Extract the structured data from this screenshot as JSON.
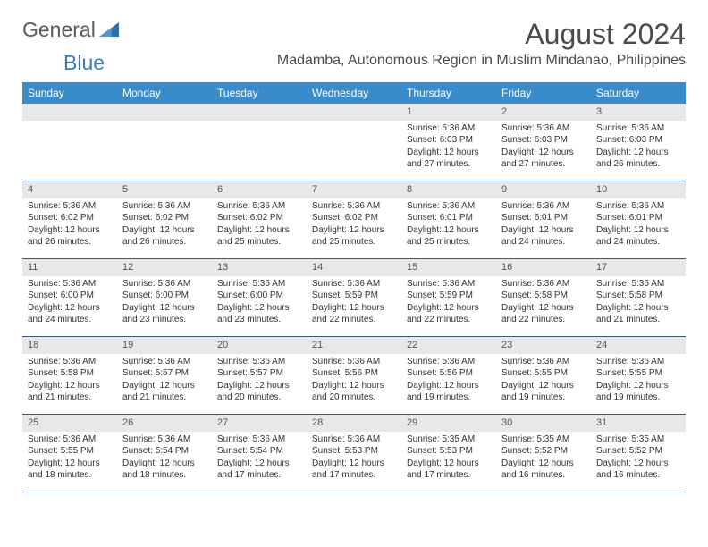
{
  "brand": {
    "part1": "General",
    "part2": "Blue"
  },
  "title": "August 2024",
  "location": "Madamba, Autonomous Region in Muslim Mindanao, Philippines",
  "colors": {
    "header_bg": "#3a8bc9",
    "header_text": "#ffffff",
    "daynum_bg": "#e8e8e8",
    "week_border": "#2d5b8a",
    "logo_gray": "#5a5a5a",
    "logo_blue": "#3a7bbf",
    "text": "#333333"
  },
  "day_names": [
    "Sunday",
    "Monday",
    "Tuesday",
    "Wednesday",
    "Thursday",
    "Friday",
    "Saturday"
  ],
  "weeks": [
    [
      null,
      null,
      null,
      null,
      {
        "n": "1",
        "sr": "5:36 AM",
        "ss": "6:03 PM",
        "dl": "12 hours and 27 minutes."
      },
      {
        "n": "2",
        "sr": "5:36 AM",
        "ss": "6:03 PM",
        "dl": "12 hours and 27 minutes."
      },
      {
        "n": "3",
        "sr": "5:36 AM",
        "ss": "6:03 PM",
        "dl": "12 hours and 26 minutes."
      }
    ],
    [
      {
        "n": "4",
        "sr": "5:36 AM",
        "ss": "6:02 PM",
        "dl": "12 hours and 26 minutes."
      },
      {
        "n": "5",
        "sr": "5:36 AM",
        "ss": "6:02 PM",
        "dl": "12 hours and 26 minutes."
      },
      {
        "n": "6",
        "sr": "5:36 AM",
        "ss": "6:02 PM",
        "dl": "12 hours and 25 minutes."
      },
      {
        "n": "7",
        "sr": "5:36 AM",
        "ss": "6:02 PM",
        "dl": "12 hours and 25 minutes."
      },
      {
        "n": "8",
        "sr": "5:36 AM",
        "ss": "6:01 PM",
        "dl": "12 hours and 25 minutes."
      },
      {
        "n": "9",
        "sr": "5:36 AM",
        "ss": "6:01 PM",
        "dl": "12 hours and 24 minutes."
      },
      {
        "n": "10",
        "sr": "5:36 AM",
        "ss": "6:01 PM",
        "dl": "12 hours and 24 minutes."
      }
    ],
    [
      {
        "n": "11",
        "sr": "5:36 AM",
        "ss": "6:00 PM",
        "dl": "12 hours and 24 minutes."
      },
      {
        "n": "12",
        "sr": "5:36 AM",
        "ss": "6:00 PM",
        "dl": "12 hours and 23 minutes."
      },
      {
        "n": "13",
        "sr": "5:36 AM",
        "ss": "6:00 PM",
        "dl": "12 hours and 23 minutes."
      },
      {
        "n": "14",
        "sr": "5:36 AM",
        "ss": "5:59 PM",
        "dl": "12 hours and 22 minutes."
      },
      {
        "n": "15",
        "sr": "5:36 AM",
        "ss": "5:59 PM",
        "dl": "12 hours and 22 minutes."
      },
      {
        "n": "16",
        "sr": "5:36 AM",
        "ss": "5:58 PM",
        "dl": "12 hours and 22 minutes."
      },
      {
        "n": "17",
        "sr": "5:36 AM",
        "ss": "5:58 PM",
        "dl": "12 hours and 21 minutes."
      }
    ],
    [
      {
        "n": "18",
        "sr": "5:36 AM",
        "ss": "5:58 PM",
        "dl": "12 hours and 21 minutes."
      },
      {
        "n": "19",
        "sr": "5:36 AM",
        "ss": "5:57 PM",
        "dl": "12 hours and 21 minutes."
      },
      {
        "n": "20",
        "sr": "5:36 AM",
        "ss": "5:57 PM",
        "dl": "12 hours and 20 minutes."
      },
      {
        "n": "21",
        "sr": "5:36 AM",
        "ss": "5:56 PM",
        "dl": "12 hours and 20 minutes."
      },
      {
        "n": "22",
        "sr": "5:36 AM",
        "ss": "5:56 PM",
        "dl": "12 hours and 19 minutes."
      },
      {
        "n": "23",
        "sr": "5:36 AM",
        "ss": "5:55 PM",
        "dl": "12 hours and 19 minutes."
      },
      {
        "n": "24",
        "sr": "5:36 AM",
        "ss": "5:55 PM",
        "dl": "12 hours and 19 minutes."
      }
    ],
    [
      {
        "n": "25",
        "sr": "5:36 AM",
        "ss": "5:55 PM",
        "dl": "12 hours and 18 minutes."
      },
      {
        "n": "26",
        "sr": "5:36 AM",
        "ss": "5:54 PM",
        "dl": "12 hours and 18 minutes."
      },
      {
        "n": "27",
        "sr": "5:36 AM",
        "ss": "5:54 PM",
        "dl": "12 hours and 17 minutes."
      },
      {
        "n": "28",
        "sr": "5:36 AM",
        "ss": "5:53 PM",
        "dl": "12 hours and 17 minutes."
      },
      {
        "n": "29",
        "sr": "5:35 AM",
        "ss": "5:53 PM",
        "dl": "12 hours and 17 minutes."
      },
      {
        "n": "30",
        "sr": "5:35 AM",
        "ss": "5:52 PM",
        "dl": "12 hours and 16 minutes."
      },
      {
        "n": "31",
        "sr": "5:35 AM",
        "ss": "5:52 PM",
        "dl": "12 hours and 16 minutes."
      }
    ]
  ],
  "labels": {
    "sunrise": "Sunrise:",
    "sunset": "Sunset:",
    "daylight": "Daylight:"
  }
}
